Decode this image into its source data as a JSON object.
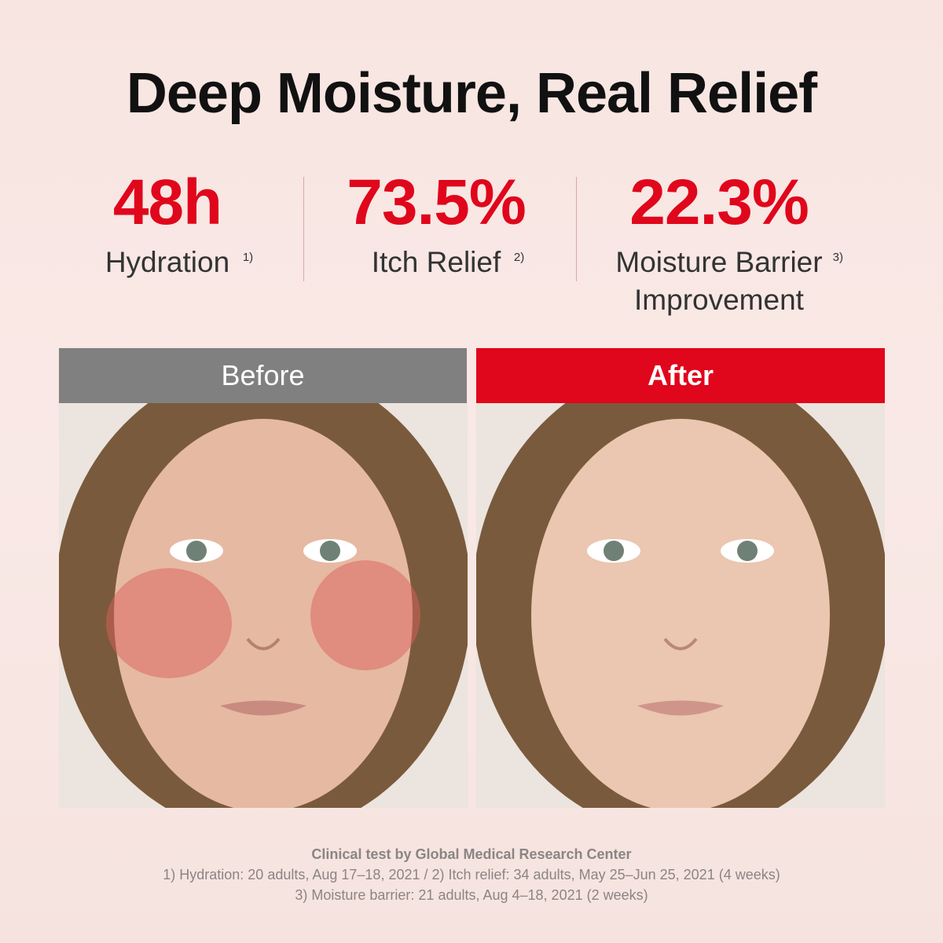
{
  "title": "Deep Moisture, Real Relief",
  "stats": [
    {
      "value": "48h",
      "label": "Hydration",
      "note": "1)"
    },
    {
      "value": "73.5%",
      "label": "Itch Relief",
      "note": "2)"
    },
    {
      "value": "22.3%",
      "label": "Moisture Barrier Improvement",
      "note": "3)"
    }
  ],
  "panels": [
    {
      "label": "Before"
    },
    {
      "label": "After"
    }
  ],
  "footnotes": {
    "heading": "Clinical test by Global Medical Research Center",
    "lines": [
      "1) Hydration: 20 adults, Aug 17–18, 2021 / 2) Itch relief: 34 adults, May 25–Jun 25, 2021 (4 weeks)",
      "3) Moisture barrier: 21 adults, Aug 4–18, 2021 (2 weeks)"
    ]
  }
}
